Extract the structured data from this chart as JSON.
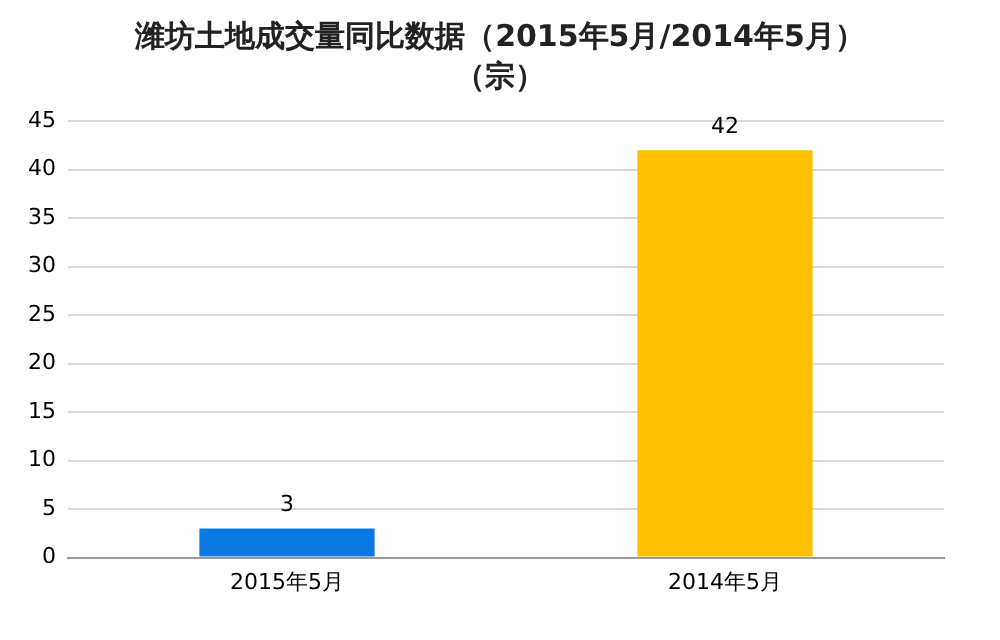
{
  "chart_data": {
    "type": "bar",
    "title": "潍坊土地成交量同比数据（2015年5月/2014年5月）",
    "subtitle": "（宗）",
    "categories": [
      "2015年5月",
      "2014年5月"
    ],
    "values": [
      3,
      42
    ],
    "colors": [
      "#0a78e0",
      "#ffc000"
    ],
    "ylim": [
      0,
      45
    ],
    "yticks": [
      0,
      5,
      10,
      15,
      20,
      25,
      30,
      35,
      40,
      45
    ],
    "grid": "y",
    "data_labels": true,
    "legend": false
  }
}
